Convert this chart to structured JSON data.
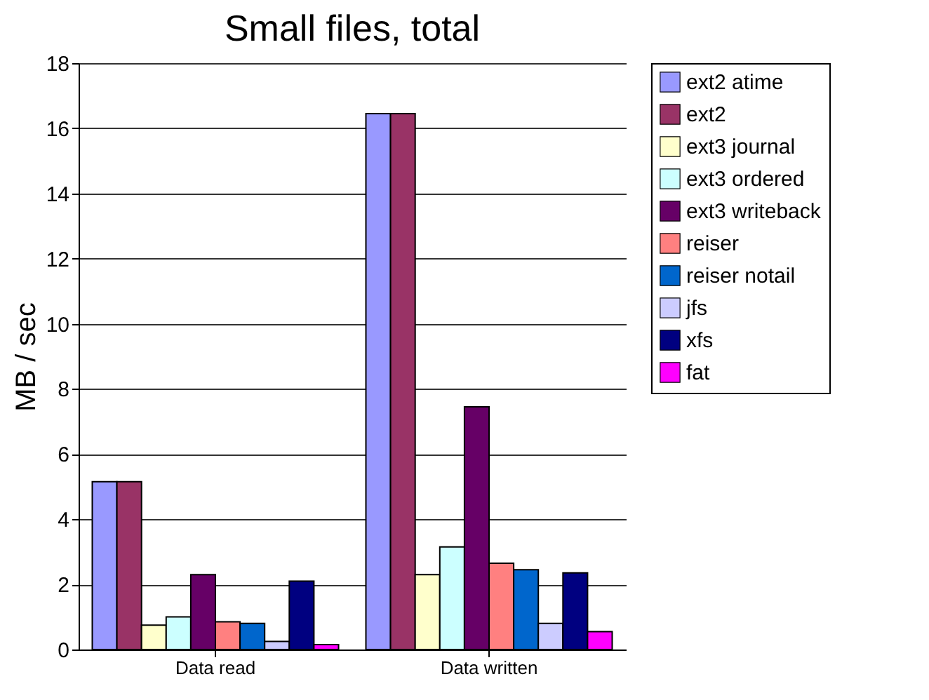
{
  "chart_data": {
    "type": "bar",
    "title": "Small files, total",
    "ylabel": "MB / sec",
    "categories": [
      "Data read",
      "Data written"
    ],
    "series": [
      {
        "name": "ext2 atime",
        "color": "#9999ff",
        "values": [
          5.15,
          16.45
        ]
      },
      {
        "name": "ext2",
        "color": "#993366",
        "values": [
          5.15,
          16.45
        ]
      },
      {
        "name": "ext3 journal",
        "color": "#ffffcc",
        "values": [
          0.75,
          2.3
        ]
      },
      {
        "name": "ext3 ordered",
        "color": "#ccffff",
        "values": [
          1.0,
          3.15
        ]
      },
      {
        "name": "ext3 writeback",
        "color": "#660066",
        "values": [
          2.3,
          7.45
        ]
      },
      {
        "name": "reiser",
        "color": "#ff8080",
        "values": [
          0.85,
          2.65
        ]
      },
      {
        "name": "reiser notail",
        "color": "#0066cc",
        "values": [
          0.8,
          2.45
        ]
      },
      {
        "name": "jfs",
        "color": "#ccccff",
        "values": [
          0.25,
          0.8
        ]
      },
      {
        "name": "xfs",
        "color": "#000080",
        "values": [
          2.1,
          2.35
        ]
      },
      {
        "name": "fat",
        "color": "#ff00ff",
        "values": [
          0.15,
          0.55
        ]
      }
    ],
    "ylim": [
      0,
      18
    ],
    "yticks": [
      0,
      2,
      4,
      6,
      8,
      10,
      12,
      14,
      16,
      18
    ],
    "grid": "y",
    "legend": "right"
  }
}
